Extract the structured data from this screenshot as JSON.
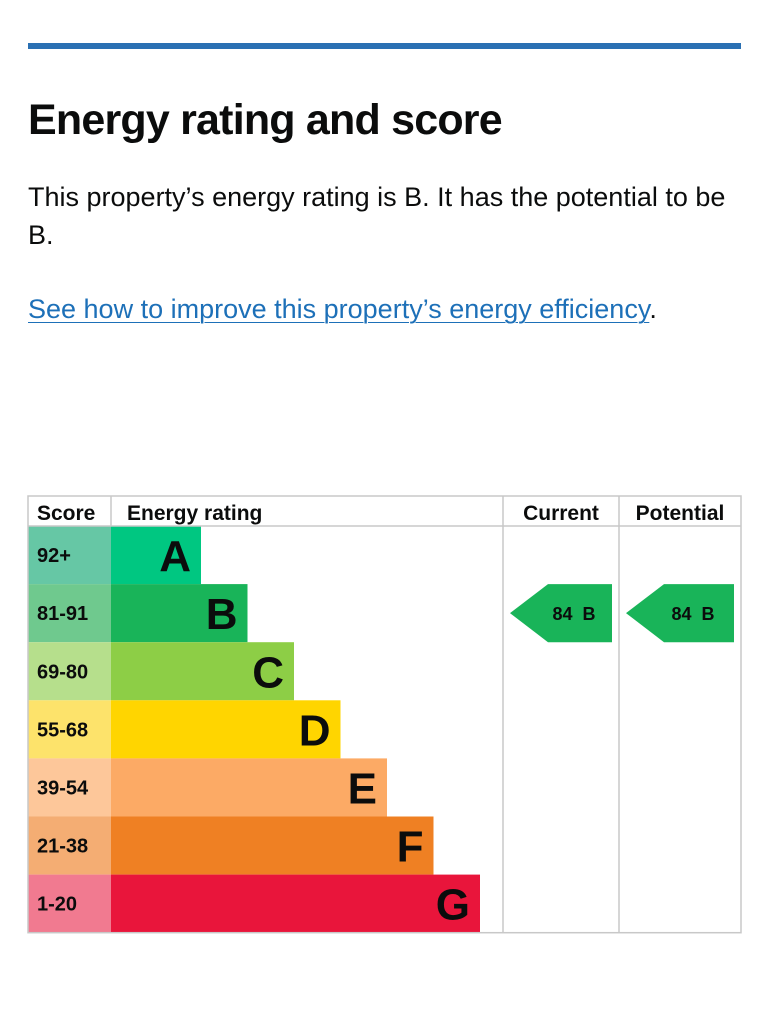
{
  "header": {
    "title": "Energy rating and score",
    "intro": "This property’s energy rating is B. It has the potential to be B.",
    "improve_link": "See how to improve this property’s energy efficiency",
    "improve_suffix": "."
  },
  "colors": {
    "rule": "#2a70b3",
    "link": "#1d70b8",
    "grid": "#c8c8c8"
  },
  "chart_data": {
    "type": "table",
    "columns": [
      "Score",
      "Energy rating",
      "Current",
      "Potential"
    ],
    "bands": [
      {
        "score": "92+",
        "letter": "A",
        "bar_color": "#00c781",
        "score_bg": "#66c7a5"
      },
      {
        "score": "81-91",
        "letter": "B",
        "bar_color": "#19b459",
        "score_bg": "#6fc98e"
      },
      {
        "score": "69-80",
        "letter": "C",
        "bar_color": "#8dce46",
        "score_bg": "#b6df8c"
      },
      {
        "score": "55-68",
        "letter": "D",
        "bar_color": "#ffd500",
        "score_bg": "#fde36b"
      },
      {
        "score": "39-54",
        "letter": "E",
        "bar_color": "#fcaa65",
        "score_bg": "#fdc79a"
      },
      {
        "score": "21-38",
        "letter": "F",
        "bar_color": "#ef8023",
        "score_bg": "#f4ad73"
      },
      {
        "score": "1-20",
        "letter": "G",
        "bar_color": "#e9153b",
        "score_bg": "#f17a90"
      }
    ],
    "current": {
      "score": 84,
      "band": "B",
      "label": "84  B",
      "color": "#19b459"
    },
    "potential": {
      "score": 84,
      "band": "B",
      "label": "84  B",
      "color": "#19b459"
    }
  }
}
